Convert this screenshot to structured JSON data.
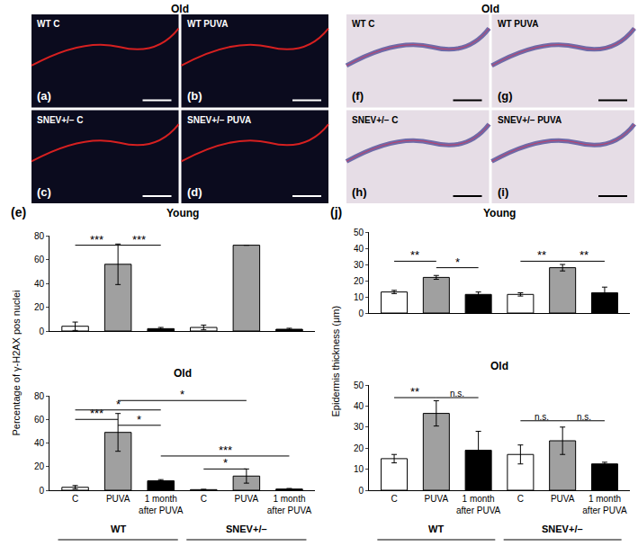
{
  "images": [
    {
      "title": "Old",
      "style": "fluorescence",
      "panels": [
        {
          "letter": "(a)",
          "label": "WT C"
        },
        {
          "letter": "(b)",
          "label": "WT PUVA"
        },
        {
          "letter": "(c)",
          "label": "SNEV+/– C"
        },
        {
          "letter": "(d)",
          "label": "SNEV+/– PUVA"
        }
      ]
    },
    {
      "title": "Old",
      "style": "histology",
      "panels": [
        {
          "letter": "(f)",
          "label": "WT C"
        },
        {
          "letter": "(g)",
          "label": "WT PUVA"
        },
        {
          "letter": "(h)",
          "label": "SNEV+/– C"
        },
        {
          "letter": "(i)",
          "label": "SNEV+/– PUVA"
        }
      ]
    }
  ],
  "chart_data": [
    {
      "type": "bar",
      "panel": "(e)",
      "title": "Young",
      "categories": [
        null,
        null,
        null,
        null,
        null,
        null
      ],
      "values": [
        4,
        56,
        2,
        3,
        72,
        1.5
      ],
      "errors": [
        3.5,
        17,
        1,
        2,
        null,
        0.8
      ],
      "colors": [
        "#ffffff",
        "#a0a0a0",
        "#000000",
        "#ffffff",
        "#a0a0a0",
        "#000000"
      ],
      "ylim": [
        0,
        80
      ],
      "yticks": [
        0,
        20,
        40,
        60,
        80
      ],
      "tick_labels": "y",
      "significance": [
        {
          "from": 0,
          "to": 1,
          "y": 72,
          "label": "***"
        },
        {
          "from": 1,
          "to": 2,
          "y": 72,
          "label": "***"
        }
      ]
    },
    {
      "type": "bar",
      "title": "Old",
      "ylabel": "Percentage of γ-H2AX pos nuclei",
      "categories": [
        "C",
        "PUVA",
        "1 month after PUVA",
        "C",
        "PUVA",
        "1 month after PUVA"
      ],
      "values": [
        2.5,
        49,
        8,
        0.5,
        12,
        1
      ],
      "errors": [
        1.5,
        16,
        1,
        0.3,
        6,
        0.5
      ],
      "colors": [
        "#ffffff",
        "#a0a0a0",
        "#000000",
        "#ffffff",
        "#a0a0a0",
        "#000000"
      ],
      "groups": [
        {
          "label": "WT",
          "from": 0,
          "to": 2
        },
        {
          "label": "SNEV+/–",
          "from": 3,
          "to": 5
        }
      ],
      "ylim": [
        0,
        80
      ],
      "yticks": [
        0,
        20,
        40,
        60,
        80
      ],
      "significance": [
        {
          "from": 0,
          "to": 1,
          "y": 60,
          "label": "***"
        },
        {
          "from": 0,
          "to": 2,
          "y": 68,
          "label": "*"
        },
        {
          "from": 1,
          "to": 2,
          "y": 55,
          "label": "*"
        },
        {
          "from": 1,
          "to": 4,
          "y": 76,
          "label": "*"
        },
        {
          "from": 2,
          "to": 5,
          "y": 29,
          "label": "***"
        },
        {
          "from": 3,
          "to": 4,
          "y": 18,
          "label": "*"
        }
      ]
    },
    {
      "type": "bar",
      "panel": "(j)",
      "title": "Young",
      "categories": [
        null,
        null,
        null,
        null,
        null,
        null
      ],
      "values": [
        13,
        22,
        11.5,
        11.5,
        28,
        12.5
      ],
      "errors": [
        1,
        1.2,
        1.5,
        1,
        2,
        3.5
      ],
      "colors": [
        "#ffffff",
        "#a0a0a0",
        "#000000",
        "#ffffff",
        "#a0a0a0",
        "#000000"
      ],
      "ylim": [
        0,
        50
      ],
      "yticks": [
        0,
        10,
        20,
        30,
        40,
        50
      ],
      "tick_labels": "y",
      "significance": [
        {
          "from": 0,
          "to": 1,
          "y": 32,
          "label": "**"
        },
        {
          "from": 1,
          "to": 2,
          "y": 28,
          "label": "*"
        },
        {
          "from": 3,
          "to": 4,
          "y": 32,
          "label": "**"
        },
        {
          "from": 4,
          "to": 5,
          "y": 32,
          "label": "**"
        }
      ]
    },
    {
      "type": "bar",
      "title": "Old",
      "ylabel": "Epidermis thickness (μm)",
      "categories": [
        "C",
        "PUVA",
        "1 month after PUVA",
        "C",
        "PUVA",
        "1 month after PUVA"
      ],
      "values": [
        15,
        36.5,
        19,
        17,
        23.5,
        12.5
      ],
      "errors": [
        2,
        6,
        9,
        4.5,
        6.5,
        0.8
      ],
      "colors": [
        "#ffffff",
        "#a0a0a0",
        "#000000",
        "#ffffff",
        "#a0a0a0",
        "#000000"
      ],
      "groups": [
        {
          "label": "WT",
          "from": 0,
          "to": 2
        },
        {
          "label": "SNEV+/–",
          "from": 3,
          "to": 5
        }
      ],
      "ylim": [
        0,
        50
      ],
      "yticks": [
        0,
        10,
        20,
        30,
        40,
        50
      ],
      "significance": [
        {
          "from": 0,
          "to": 1,
          "y": 44,
          "label": "**"
        },
        {
          "from": 1,
          "to": 2,
          "y": 44,
          "label": "n.s."
        },
        {
          "from": 3,
          "to": 4,
          "y": 33,
          "label": "n.s."
        },
        {
          "from": 4,
          "to": 5,
          "y": 33,
          "label": "n.s."
        }
      ]
    }
  ]
}
